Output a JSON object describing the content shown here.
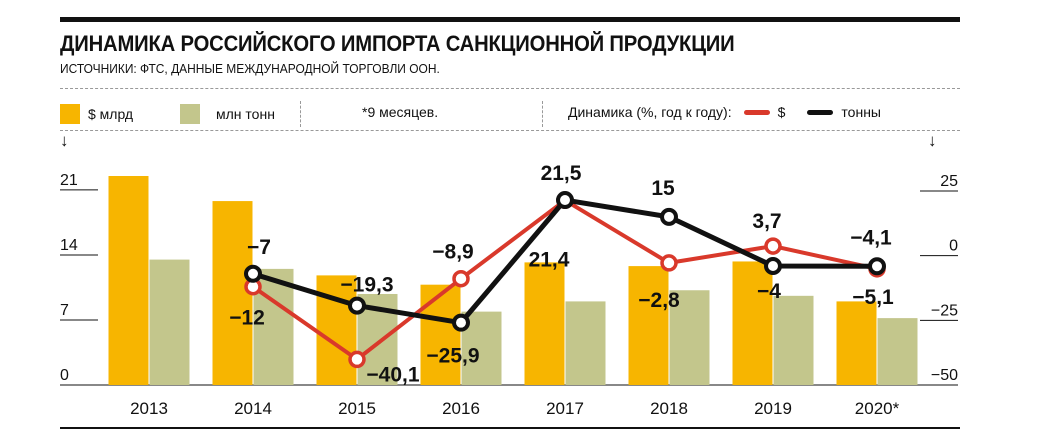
{
  "title": "ДИНАМИКА РОССИЙСКОГО ИМПОРТА САНКЦИОННОЙ ПРОДУКЦИИ",
  "subtitle": "ИСТОЧНИКИ: ФТС, ДАННЫЕ МЕЖДУНАРОДНОЙ ТОРГОВЛИ ООН.",
  "legend": {
    "bar_usd": "$ млрд",
    "bar_tons": "млн тонн",
    "note": "*9 месяцев.",
    "dynamics": "Динамика (%, год к году):",
    "line_usd": "$",
    "line_tons": "тонны"
  },
  "colors": {
    "bar_usd": "#f7b500",
    "bar_tons": "#c3c68c",
    "line_usd": "#d9392b",
    "line_tons": "#111111"
  },
  "chart_data": {
    "type": "bar",
    "categories": [
      "2013",
      "2014",
      "2015",
      "2016",
      "2017",
      "2018",
      "2019",
      "2020*"
    ],
    "left_axis": {
      "ticks": [
        "0",
        "7",
        "14",
        "21"
      ],
      "ylim": [
        0,
        24
      ]
    },
    "right_axis": {
      "ticks": [
        "−50",
        "−25",
        "0",
        "25"
      ],
      "ylim": [
        -50,
        45
      ]
    },
    "series": [
      {
        "name": "$ млрд",
        "type": "bar",
        "axis": "left",
        "values": [
          22.5,
          19.8,
          11.8,
          10.8,
          13.2,
          12.8,
          13.3,
          9.0
        ]
      },
      {
        "name": "млн тонн",
        "type": "bar",
        "axis": "left",
        "values": [
          13.5,
          12.5,
          9.8,
          7.9,
          9.0,
          10.2,
          9.6,
          7.2
        ]
      },
      {
        "name": "$",
        "type": "line",
        "axis": "right",
        "values": [
          null,
          -12,
          -40.1,
          -8.9,
          21.4,
          -2.8,
          3.7,
          -5.1
        ],
        "labels": [
          "",
          "−12",
          "−40,1",
          "−8,9",
          "21,4",
          "−2,8",
          "3,7",
          "−5,1"
        ]
      },
      {
        "name": "тонны",
        "type": "line",
        "axis": "right",
        "values": [
          null,
          -7,
          -19.3,
          -25.9,
          21.5,
          15,
          -4,
          -4.1
        ],
        "labels": [
          "",
          "−7",
          "−19,3",
          "−25,9",
          "21,5",
          "15",
          "−4",
          "−4,1"
        ]
      }
    ]
  }
}
